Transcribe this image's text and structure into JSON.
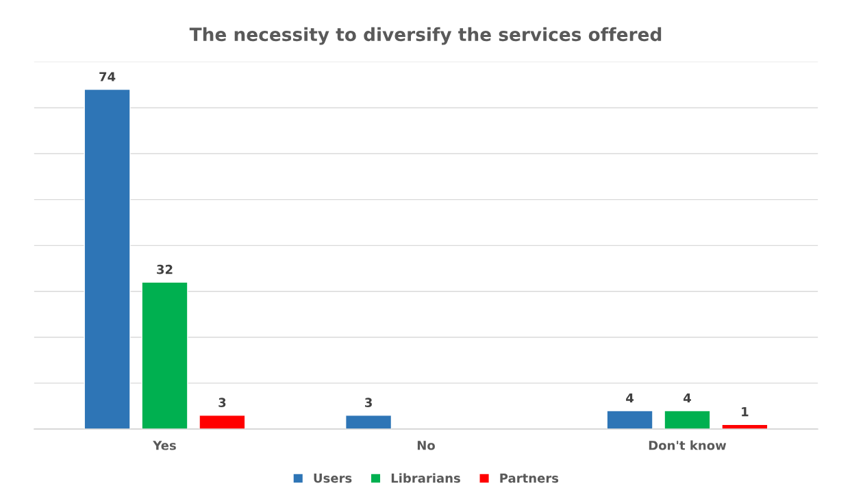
{
  "chart_data": {
    "type": "bar",
    "title": "The necessity to diversify the services offered",
    "categories": [
      "Yes",
      "No",
      "Don't know"
    ],
    "series": [
      {
        "name": "Users",
        "color": "#2e75b6",
        "values": [
          74,
          3,
          4
        ]
      },
      {
        "name": "Librarians",
        "color": "#00b050",
        "values": [
          32,
          null,
          4
        ]
      },
      {
        "name": "Partners",
        "color": "#ff0000",
        "values": [
          3,
          null,
          1
        ]
      }
    ],
    "ylim": [
      0,
      80
    ],
    "yticks": [
      {
        "value": 0,
        "label": null
      },
      {
        "value": 10,
        "label": null
      },
      {
        "value": 20,
        "label": null
      },
      {
        "value": 30,
        "label": null
      },
      {
        "value": 40,
        "label": null
      },
      {
        "value": 50,
        "label": null
      },
      {
        "value": 60,
        "label": null
      },
      {
        "value": 70,
        "label": null
      },
      {
        "value": 80,
        "label": null
      }
    ],
    "tick_labels": "x",
    "grid": "y",
    "legend": "bottom",
    "data_labels": true
  }
}
